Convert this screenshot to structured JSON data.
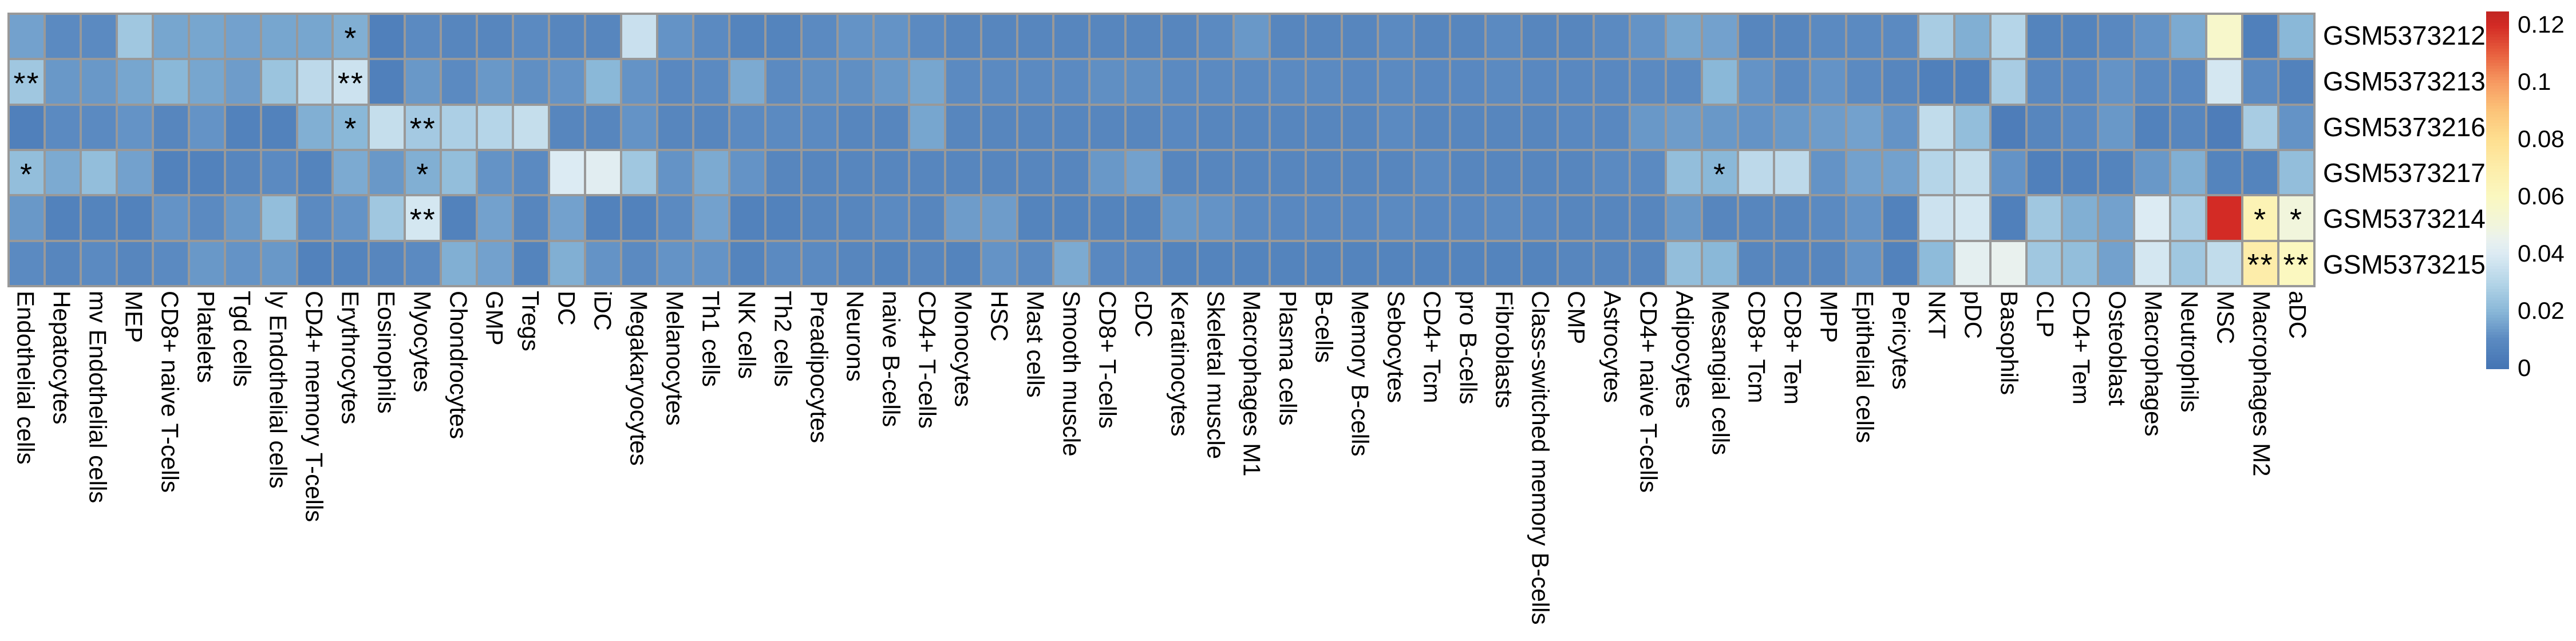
{
  "chart_data": {
    "type": "heatmap",
    "title": "",
    "xlabel": "",
    "ylabel": "",
    "grid_color": "#999999",
    "background_color": "#ffffff",
    "columns": [
      "Endothelial cells",
      "Hepatocytes",
      "mv Endothelial cells",
      "MEP",
      "CD8+ naive T-cells",
      "Platelets",
      "Tgd cells",
      "ly Endothelial cells",
      "CD4+ memory T-cells",
      "Erythrocytes",
      "Eosinophils",
      "Myocytes",
      "Chondrocytes",
      "GMP",
      "Tregs",
      "DC",
      "iDC",
      "Megakaryocytes",
      "Melanocytes",
      "Th1 cells",
      "NK cells",
      "Th2 cells",
      "Preadipocytes",
      "Neurons",
      "naive B-cells",
      "CD4+ T-cells",
      "Monocytes",
      "HSC",
      "Mast cells",
      "Smooth muscle",
      "CD8+ T-cells",
      "cDC",
      "Keratinocytes",
      "Skeletal muscle",
      "Macrophages M1",
      "Plasma cells",
      "B-cells",
      "Memory B-cells",
      "Sebocytes",
      "CD4+ Tcm",
      "pro B-cells",
      "Fibroblasts",
      "Class-switched memory B-cells",
      "CMP",
      "Astrocytes",
      "CD4+ naive T-cells",
      "Adipocytes",
      "Mesangial cells",
      "CD8+ Tcm",
      "CD8+ Tem",
      "MPP",
      "Epithelial cells",
      "Pericytes",
      "NKT",
      "pDC",
      "Basophils",
      "CLP",
      "CD4+ Tem",
      "Osteoblast",
      "Macrophages",
      "Neutrophils",
      "MSC",
      "Macrophages M2",
      "aDC"
    ],
    "rows": [
      "GSM5373212",
      "GSM5373213",
      "GSM5373216",
      "GSM5373217",
      "GSM5373214",
      "GSM5373215"
    ],
    "values": [
      [
        0.015,
        0.01,
        0.01,
        0.025,
        0.016,
        0.016,
        0.015,
        0.016,
        0.016,
        0.018,
        0.005,
        0.01,
        0.008,
        0.008,
        0.01,
        0.008,
        0.008,
        0.035,
        0.012,
        0.01,
        0.007,
        0.007,
        0.01,
        0.012,
        0.012,
        0.01,
        0.008,
        0.008,
        0.008,
        0.008,
        0.008,
        0.008,
        0.008,
        0.01,
        0.013,
        0.008,
        0.008,
        0.008,
        0.01,
        0.008,
        0.008,
        0.01,
        0.008,
        0.008,
        0.01,
        0.012,
        0.016,
        0.015,
        0.008,
        0.008,
        0.01,
        0.01,
        0.01,
        0.027,
        0.018,
        0.03,
        0.007,
        0.007,
        0.009,
        0.012,
        0.017,
        0.056,
        0.005,
        0.02
      ],
      [
        0.025,
        0.013,
        0.013,
        0.016,
        0.02,
        0.016,
        0.014,
        0.024,
        0.032,
        0.036,
        0.005,
        0.013,
        0.01,
        0.013,
        0.011,
        0.012,
        0.02,
        0.012,
        0.009,
        0.01,
        0.017,
        0.01,
        0.011,
        0.011,
        0.013,
        0.016,
        0.01,
        0.01,
        0.01,
        0.01,
        0.011,
        0.011,
        0.01,
        0.01,
        0.01,
        0.01,
        0.01,
        0.009,
        0.01,
        0.009,
        0.009,
        0.01,
        0.009,
        0.009,
        0.009,
        0.01,
        0.01,
        0.02,
        0.012,
        0.01,
        0.012,
        0.01,
        0.008,
        0.005,
        0.005,
        0.027,
        0.009,
        0.009,
        0.012,
        0.01,
        0.009,
        0.038,
        0.01,
        0.006
      ],
      [
        0.005,
        0.01,
        0.01,
        0.012,
        0.008,
        0.012,
        0.006,
        0.006,
        0.018,
        0.02,
        0.034,
        0.026,
        0.028,
        0.03,
        0.034,
        0.008,
        0.008,
        0.012,
        0.008,
        0.008,
        0.01,
        0.01,
        0.01,
        0.008,
        0.008,
        0.016,
        0.008,
        0.008,
        0.008,
        0.008,
        0.008,
        0.008,
        0.009,
        0.008,
        0.008,
        0.008,
        0.008,
        0.008,
        0.01,
        0.008,
        0.008,
        0.008,
        0.008,
        0.009,
        0.009,
        0.013,
        0.014,
        0.013,
        0.012,
        0.013,
        0.014,
        0.015,
        0.012,
        0.033,
        0.022,
        0.004,
        0.008,
        0.01,
        0.013,
        0.006,
        0.008,
        0.004,
        0.027,
        0.012
      ],
      [
        0.022,
        0.017,
        0.022,
        0.015,
        0.006,
        0.006,
        0.008,
        0.01,
        0.007,
        0.017,
        0.013,
        0.018,
        0.022,
        0.012,
        0.01,
        0.04,
        0.042,
        0.025,
        0.012,
        0.017,
        0.012,
        0.008,
        0.008,
        0.008,
        0.008,
        0.008,
        0.008,
        0.008,
        0.008,
        0.008,
        0.013,
        0.015,
        0.008,
        0.008,
        0.008,
        0.008,
        0.008,
        0.008,
        0.008,
        0.01,
        0.008,
        0.008,
        0.008,
        0.008,
        0.01,
        0.01,
        0.022,
        0.02,
        0.032,
        0.032,
        0.012,
        0.015,
        0.015,
        0.03,
        0.034,
        0.012,
        0.005,
        0.006,
        0.007,
        0.013,
        0.018,
        0.007,
        0.007,
        0.022
      ],
      [
        0.013,
        0.006,
        0.007,
        0.006,
        0.012,
        0.01,
        0.013,
        0.022,
        0.01,
        0.012,
        0.025,
        0.038,
        0.006,
        0.015,
        0.008,
        0.015,
        0.006,
        0.006,
        0.01,
        0.015,
        0.006,
        0.006,
        0.008,
        0.008,
        0.01,
        0.008,
        0.014,
        0.014,
        0.007,
        0.007,
        0.007,
        0.007,
        0.013,
        0.012,
        0.01,
        0.009,
        0.009,
        0.009,
        0.01,
        0.009,
        0.009,
        0.01,
        0.009,
        0.008,
        0.008,
        0.008,
        0.013,
        0.008,
        0.008,
        0.008,
        0.01,
        0.012,
        0.006,
        0.036,
        0.038,
        0.005,
        0.025,
        0.018,
        0.015,
        0.04,
        0.027,
        0.12,
        0.065,
        0.05
      ],
      [
        0.01,
        0.008,
        0.01,
        0.008,
        0.01,
        0.013,
        0.012,
        0.013,
        0.006,
        0.007,
        0.008,
        0.01,
        0.018,
        0.015,
        0.007,
        0.018,
        0.012,
        0.01,
        0.012,
        0.012,
        0.007,
        0.01,
        0.01,
        0.008,
        0.007,
        0.008,
        0.007,
        0.012,
        0.01,
        0.017,
        0.009,
        0.009,
        0.007,
        0.007,
        0.007,
        0.007,
        0.007,
        0.007,
        0.007,
        0.007,
        0.007,
        0.007,
        0.007,
        0.008,
        0.008,
        0.008,
        0.022,
        0.02,
        0.008,
        0.008,
        0.008,
        0.012,
        0.006,
        0.021,
        0.043,
        0.045,
        0.025,
        0.022,
        0.015,
        0.038,
        0.025,
        0.033,
        0.07,
        0.06
      ]
    ],
    "annotations": [
      {
        "row": "GSM5373212",
        "col": "Erythrocytes",
        "mark": "*"
      },
      {
        "row": "GSM5373213",
        "col": "Endothelial cells",
        "mark": "**"
      },
      {
        "row": "GSM5373213",
        "col": "Erythrocytes",
        "mark": "**"
      },
      {
        "row": "GSM5373216",
        "col": "Erythrocytes",
        "mark": "*"
      },
      {
        "row": "GSM5373216",
        "col": "Myocytes",
        "mark": "**"
      },
      {
        "row": "GSM5373217",
        "col": "Endothelial cells",
        "mark": "*"
      },
      {
        "row": "GSM5373217",
        "col": "Myocytes",
        "mark": "*"
      },
      {
        "row": "GSM5373217",
        "col": "Mesangial cells",
        "mark": "*"
      },
      {
        "row": "GSM5373214",
        "col": "Myocytes",
        "mark": "**"
      },
      {
        "row": "GSM5373214",
        "col": "Macrophages M2",
        "mark": "*"
      },
      {
        "row": "GSM5373214",
        "col": "aDC",
        "mark": "*"
      },
      {
        "row": "GSM5373215",
        "col": "Macrophages M2",
        "mark": "**"
      },
      {
        "row": "GSM5373215",
        "col": "aDC",
        "mark": "**"
      }
    ],
    "legend_position": "right",
    "colorbar": {
      "tick_labels": [
        "0.12",
        "0.1",
        "0.08",
        "0.06",
        "0.04",
        "0.02",
        "0"
      ],
      "tick_values": [
        0.12,
        0.1,
        0.08,
        0.06,
        0.04,
        0.02,
        0
      ],
      "domain": [
        0,
        0.1246
      ]
    },
    "colormap_stops": [
      [
        0.0,
        "#4575b4"
      ],
      [
        0.01,
        "#5b8ac1"
      ],
      [
        0.02,
        "#8ab8d8"
      ],
      [
        0.03,
        "#b5d5e8"
      ],
      [
        0.04,
        "#dcebf3"
      ],
      [
        0.045,
        "#e9f1ee"
      ],
      [
        0.05,
        "#f1f5dc"
      ],
      [
        0.06,
        "#fbf8c0"
      ],
      [
        0.07,
        "#fdedaa"
      ],
      [
        0.08,
        "#fedf90"
      ],
      [
        0.09,
        "#fcc479"
      ],
      [
        0.1,
        "#f79b62"
      ],
      [
        0.11,
        "#e8613f"
      ],
      [
        0.12,
        "#d32b25"
      ],
      [
        0.1246,
        "#c32622"
      ]
    ]
  }
}
